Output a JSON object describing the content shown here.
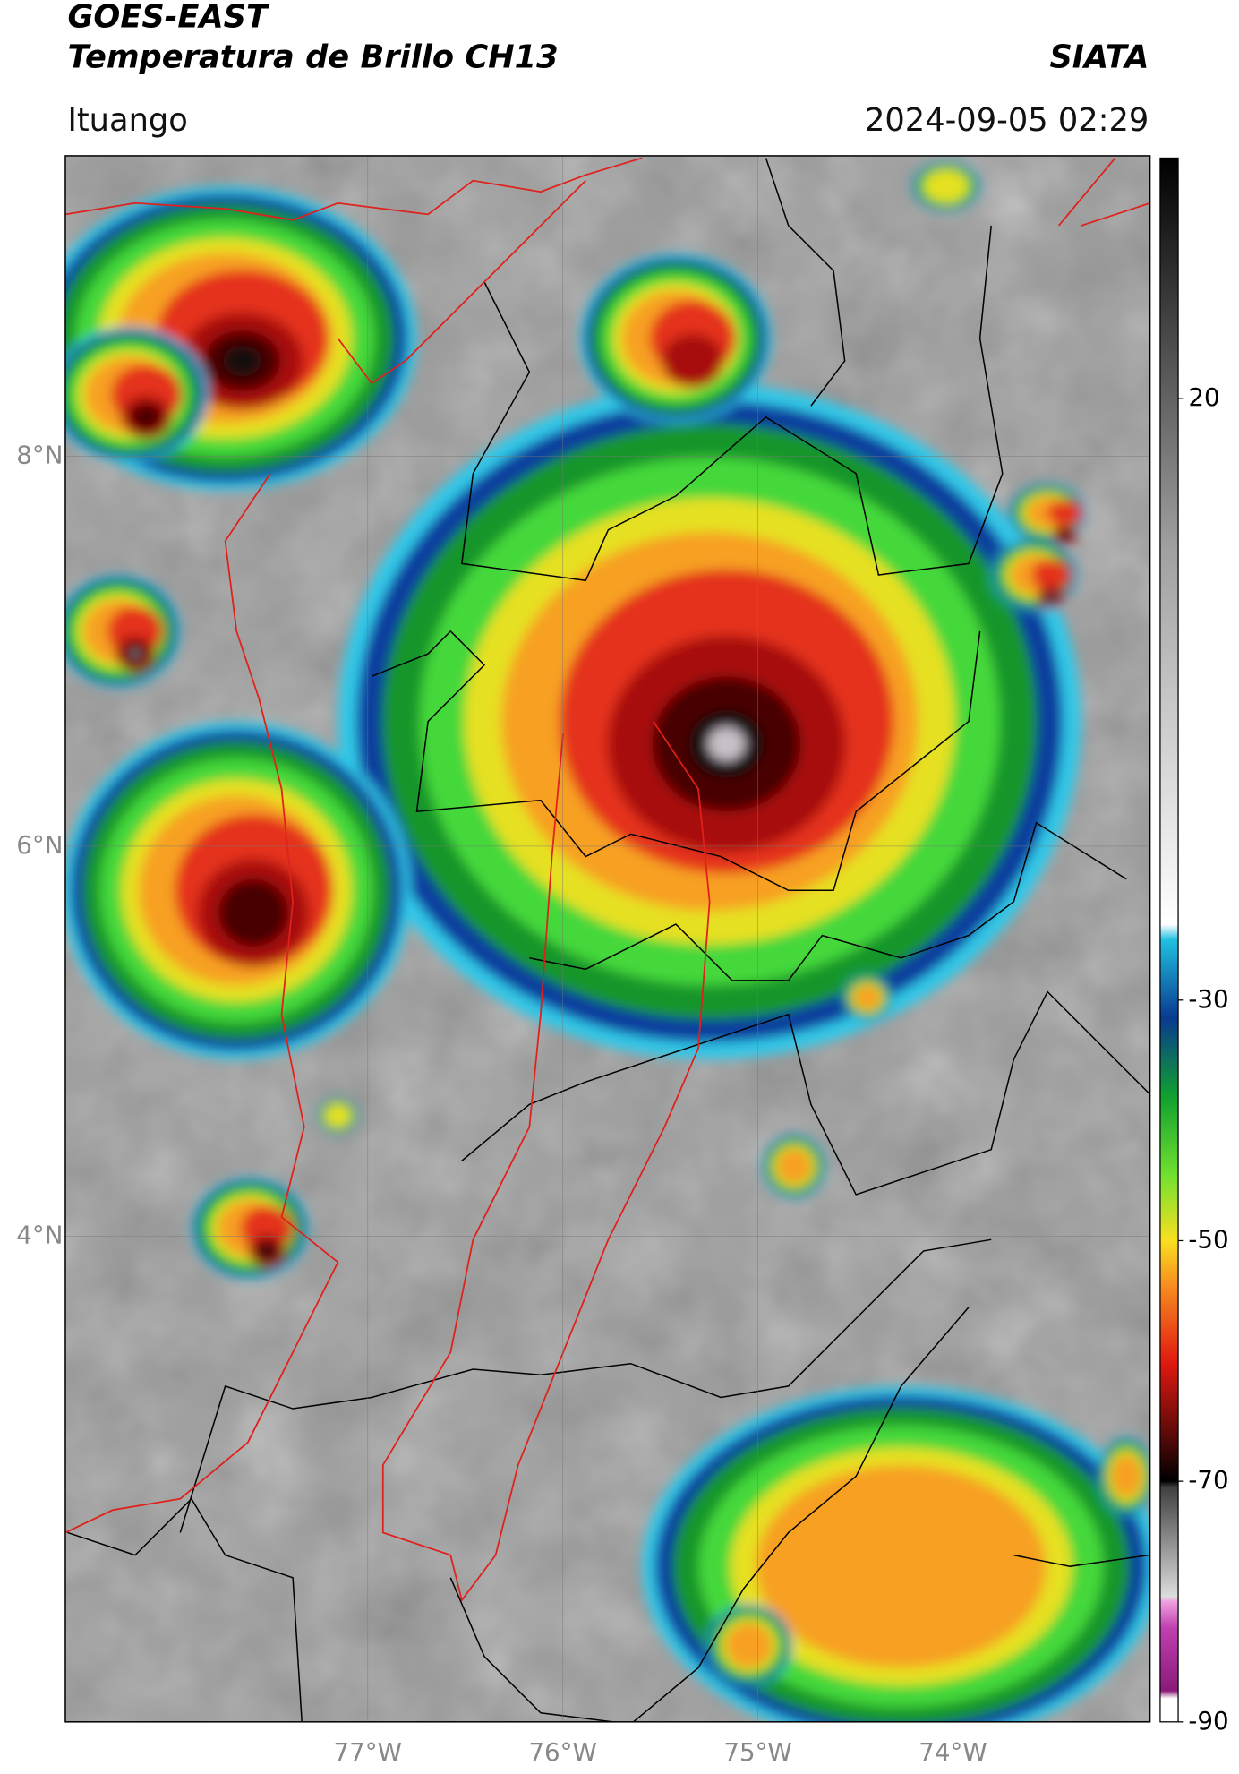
{
  "header": {
    "title": "GOES-EAST",
    "subtitle": "Temperatura de Brillo CH13",
    "brand": "SIATA",
    "location": "Ituango",
    "datetime": "2024-09-05 02:29"
  },
  "map": {
    "lat_ticks": [
      {
        "value": 8,
        "label": "8°N"
      },
      {
        "value": 6,
        "label": "6°N"
      },
      {
        "value": 4,
        "label": "4°N"
      }
    ],
    "lon_ticks": [
      {
        "value": -77,
        "label": "77°W"
      },
      {
        "value": -76,
        "label": "76°W"
      },
      {
        "value": -75,
        "label": "75°W"
      },
      {
        "value": -74,
        "label": "74°W"
      }
    ],
    "latlim": [
      1.51,
      9.54
    ],
    "lonlim": [
      -78.55,
      -72.99
    ]
  },
  "colorbar": {
    "lim": [
      -90,
      40
    ],
    "ticks": [
      20,
      -30,
      -50,
      -70,
      -90
    ]
  }
}
